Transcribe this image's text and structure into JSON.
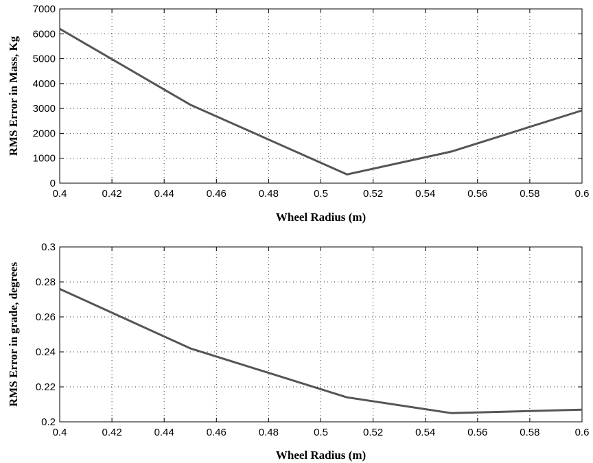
{
  "chart_data": [
    {
      "type": "line",
      "title": "",
      "xlabel": "Wheel Radius (m)",
      "ylabel": "RMS Error in Mass, Kg",
      "xlim": [
        0.4,
        0.6
      ],
      "ylim": [
        0,
        7000
      ],
      "xticks": [
        0.4,
        0.42,
        0.44,
        0.46,
        0.48,
        0.5,
        0.52,
        0.54,
        0.56,
        0.58,
        0.6
      ],
      "xtick_labels": [
        "0.4",
        "0.42",
        "0.44",
        "0.46",
        "0.48",
        "0.5",
        "0.52",
        "0.54",
        "0.56",
        "0.58",
        "0.6"
      ],
      "yticks": [
        0,
        1000,
        2000,
        3000,
        4000,
        5000,
        6000,
        7000
      ],
      "ytick_labels": [
        "0",
        "1000",
        "2000",
        "3000",
        "4000",
        "5000",
        "6000",
        "7000"
      ],
      "grid": true,
      "color": "#555555",
      "series": [
        {
          "x": [
            0.4,
            0.45,
            0.51,
            0.55,
            0.6
          ],
          "y": [
            6200,
            3150,
            350,
            1270,
            2920
          ]
        }
      ]
    },
    {
      "type": "line",
      "title": "",
      "xlabel": "Wheel Radius (m)",
      "ylabel": "RMS Error in grade, degrees",
      "xlim": [
        0.4,
        0.6
      ],
      "ylim": [
        0.2,
        0.3
      ],
      "xticks": [
        0.4,
        0.42,
        0.44,
        0.46,
        0.48,
        0.5,
        0.52,
        0.54,
        0.56,
        0.58,
        0.6
      ],
      "xtick_labels": [
        "0.4",
        "0.42",
        "0.44",
        "0.46",
        "0.48",
        "0.5",
        "0.52",
        "0.54",
        "0.56",
        "0.58",
        "0.6"
      ],
      "yticks": [
        0.2,
        0.22,
        0.24,
        0.26,
        0.28,
        0.3
      ],
      "ytick_labels": [
        "0.2",
        "0.22",
        "0.24",
        "0.26",
        "0.28",
        "0.3"
      ],
      "grid": true,
      "color": "#555555",
      "series": [
        {
          "x": [
            0.4,
            0.45,
            0.51,
            0.55,
            0.6
          ],
          "y": [
            0.276,
            0.242,
            0.214,
            0.205,
            0.207
          ]
        }
      ]
    }
  ]
}
